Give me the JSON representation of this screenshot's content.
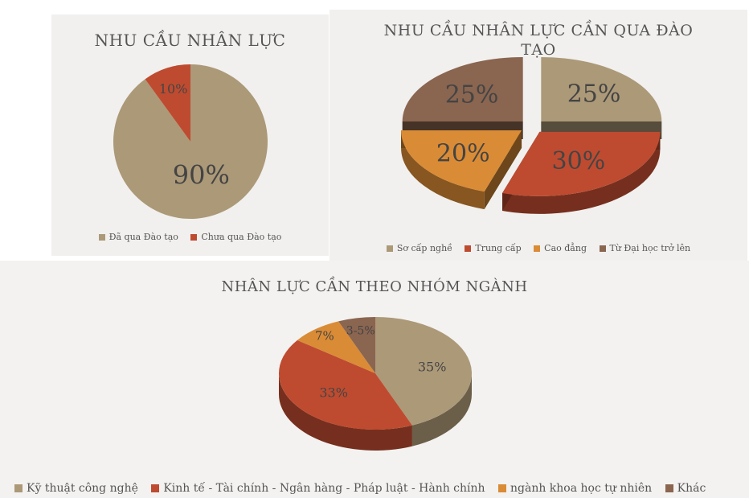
{
  "chart_data": [
    {
      "type": "pie",
      "title": "NHU CẦU NHÂN LỰC",
      "categories": [
        "Đã qua Đào tạo",
        "Chưa qua Đào tạo"
      ],
      "values": [
        90,
        10
      ],
      "data_labels": [
        "90%",
        "10%"
      ],
      "colors": [
        "#ac9978",
        "#be4b30"
      ],
      "legend": "bottom"
    },
    {
      "type": "pie",
      "style": "3d-exploded",
      "title": "NHU CẦU NHÂN LỰC CẦN QUA ĐÀO TẠO",
      "categories": [
        "Sơ cấp nghề",
        "Trung cấp",
        "Cao đẳng",
        "Từ Đại học trở lên"
      ],
      "values": [
        25,
        30,
        20,
        25
      ],
      "data_labels": [
        "25%",
        "30%",
        "20%",
        "25%"
      ],
      "colors": [
        "#ac9978",
        "#be4b30",
        "#da8b35",
        "#8a6550"
      ],
      "legend": "bottom"
    },
    {
      "type": "pie",
      "style": "3d",
      "title": "NHÂN LỰC CẦN THEO NHÓM NGÀNH",
      "categories": [
        "Kỹ thuật công nghệ",
        "Kinh tế - Tài chính - Ngân hàng - Pháp luật - Hành chính",
        "ngành khoa học tự nhiên",
        "Khác"
      ],
      "values": [
        35,
        33,
        7,
        5
      ],
      "data_labels": [
        "35%",
        "33%",
        "7%",
        "3-5%"
      ],
      "colors": [
        "#ac9978",
        "#be4b30",
        "#da8b35",
        "#8a6550"
      ],
      "legend": "bottom"
    }
  ]
}
